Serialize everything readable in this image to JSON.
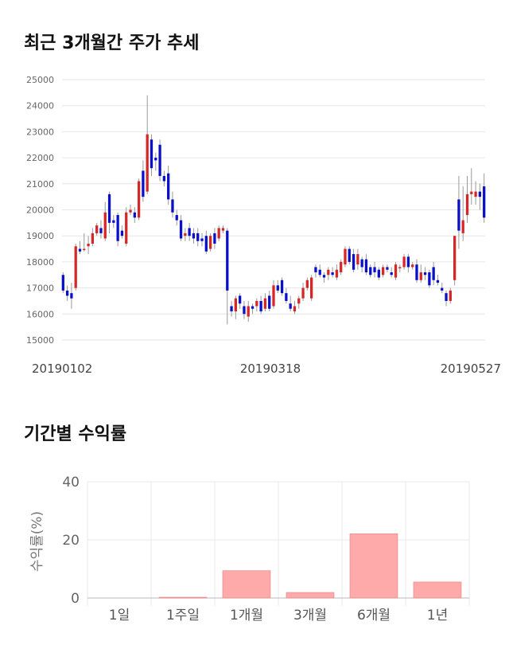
{
  "titles": {
    "price_chart": "최근 3개월간 주가 추세",
    "returns_chart": "기간별 수익률"
  },
  "chart_data": [
    {
      "type": "candlestick",
      "ylim": [
        15000,
        25000
      ],
      "y_ticks": [
        "25000",
        "24000",
        "23000",
        "22000",
        "21000",
        "20000",
        "19000",
        "18000",
        "17000",
        "16000",
        "15000"
      ],
      "x_labels": [
        "20190102",
        "20190318",
        "20190527"
      ],
      "grid": true,
      "colors": {
        "up": "#d62728",
        "down": "#0a10c8",
        "wick": "#999999",
        "grid": "#e6e6e6"
      },
      "candles": [
        [
          17500,
          16900,
          17600,
          16800
        ],
        [
          16900,
          16700,
          17100,
          16500
        ],
        [
          16800,
          16600,
          17200,
          16200
        ],
        [
          17000,
          18600,
          18700,
          16900
        ],
        [
          18500,
          18400,
          18800,
          18300
        ],
        [
          18500,
          18500,
          19100,
          18400
        ],
        [
          18600,
          18700,
          19000,
          18300
        ],
        [
          18700,
          19100,
          19300,
          18600
        ],
        [
          19100,
          19400,
          19500,
          19000
        ],
        [
          19300,
          19100,
          19600,
          18900
        ],
        [
          18900,
          19900,
          20300,
          18800
        ],
        [
          20600,
          19500,
          20700,
          19100
        ],
        [
          19600,
          19500,
          19800,
          19300
        ],
        [
          19800,
          18800,
          19900,
          18600
        ],
        [
          19200,
          19000,
          19400,
          18900
        ],
        [
          18700,
          19900,
          20100,
          18600
        ],
        [
          19900,
          20000,
          20200,
          19800
        ],
        [
          19900,
          19700,
          20100,
          19500
        ],
        [
          19700,
          21100,
          21200,
          19600
        ],
        [
          21500,
          20500,
          21900,
          20300
        ],
        [
          20700,
          22900,
          24400,
          20600
        ],
        [
          22700,
          21600,
          22900,
          21300
        ],
        [
          22000,
          21900,
          22200,
          21500
        ],
        [
          22500,
          21300,
          22700,
          21100
        ],
        [
          21300,
          21100,
          21500,
          20900
        ],
        [
          21400,
          20400,
          21700,
          20200
        ],
        [
          20400,
          19900,
          20700,
          19700
        ],
        [
          19800,
          19600,
          20000,
          19400
        ],
        [
          19600,
          18900,
          19800,
          18800
        ],
        [
          19000,
          19100,
          19300,
          18800
        ],
        [
          19300,
          19000,
          19500,
          18800
        ],
        [
          19100,
          18900,
          19300,
          18700
        ],
        [
          19100,
          18800,
          19300,
          18600
        ],
        [
          18900,
          18800,
          19100,
          18600
        ],
        [
          19000,
          18400,
          19200,
          18300
        ],
        [
          18500,
          19000,
          19100,
          18400
        ],
        [
          19100,
          18700,
          19300,
          18500
        ],
        [
          18900,
          19300,
          19400,
          18800
        ],
        [
          19200,
          19300,
          19400,
          19100
        ],
        [
          19200,
          16900,
          19300,
          15600
        ],
        [
          16300,
          16100,
          16500,
          15900
        ],
        [
          16100,
          16600,
          16700,
          15800
        ],
        [
          16700,
          16400,
          16800,
          16200
        ],
        [
          16300,
          16000,
          16500,
          15800
        ],
        [
          15900,
          16300,
          16500,
          15700
        ],
        [
          16300,
          16200,
          16400,
          16000
        ],
        [
          16300,
          16500,
          16600,
          16100
        ],
        [
          16500,
          16100,
          16700,
          16000
        ],
        [
          16200,
          16600,
          16800,
          16100
        ],
        [
          16700,
          16200,
          16900,
          16100
        ],
        [
          16300,
          17100,
          17300,
          16200
        ],
        [
          17100,
          16900,
          17300,
          16800
        ],
        [
          17300,
          16800,
          17400,
          16700
        ],
        [
          16800,
          16500,
          17000,
          16400
        ],
        [
          16400,
          16200,
          16700,
          16100
        ],
        [
          16100,
          16300,
          16500,
          16000
        ],
        [
          16400,
          16600,
          16700,
          16200
        ],
        [
          16600,
          17000,
          17200,
          16500
        ],
        [
          17000,
          17300,
          17400,
          16900
        ],
        [
          16600,
          17400,
          17500,
          16500
        ],
        [
          17800,
          17600,
          17900,
          17400
        ],
        [
          17700,
          17500,
          17900,
          17400
        ],
        [
          17500,
          17400,
          17600,
          17200
        ],
        [
          17500,
          17700,
          17800,
          17300
        ],
        [
          17600,
          17500,
          17800,
          17400
        ],
        [
          17400,
          17700,
          17900,
          17300
        ],
        [
          17600,
          18000,
          18100,
          17500
        ],
        [
          17900,
          18500,
          18600,
          17800
        ],
        [
          18500,
          18000,
          18600,
          17900
        ],
        [
          18300,
          17700,
          18500,
          17600
        ],
        [
          17900,
          18300,
          18500,
          17700
        ],
        [
          18100,
          17800,
          18200,
          17600
        ],
        [
          18100,
          17600,
          18300,
          17500
        ],
        [
          17800,
          17500,
          17900,
          17400
        ],
        [
          17800,
          17600,
          18000,
          17400
        ],
        [
          17700,
          17400,
          17800,
          17300
        ],
        [
          17500,
          17800,
          17900,
          17400
        ],
        [
          17800,
          17700,
          17900,
          17600
        ],
        [
          17600,
          17500,
          17800,
          17400
        ],
        [
          17400,
          17900,
          18000,
          17300
        ],
        [
          17800,
          17800,
          17900,
          17600
        ],
        [
          17800,
          18200,
          18300,
          17700
        ],
        [
          18200,
          17800,
          18300,
          17600
        ],
        [
          17800,
          17900,
          18000,
          17700
        ],
        [
          17900,
          17300,
          18100,
          17200
        ],
        [
          17300,
          17600,
          17900,
          17200
        ],
        [
          17600,
          17500,
          17800,
          17300
        ],
        [
          17600,
          17100,
          17700,
          17000
        ],
        [
          17800,
          17300,
          18000,
          17100
        ],
        [
          17300,
          17200,
          17500,
          17100
        ],
        [
          17000,
          16900,
          17200,
          16800
        ],
        [
          16800,
          16500,
          16900,
          16300
        ],
        [
          16500,
          16900,
          17000,
          16400
        ],
        [
          17300,
          19000,
          19000,
          17100
        ],
        [
          20400,
          19200,
          21300,
          18500
        ],
        [
          19100,
          19600,
          20900,
          18800
        ],
        [
          19800,
          20600,
          21300,
          19500
        ],
        [
          20600,
          20700,
          21600,
          20200
        ],
        [
          20500,
          20700,
          21100,
          20200
        ],
        [
          20700,
          20500,
          21000,
          20000
        ],
        [
          20900,
          19700,
          21400,
          19500
        ]
      ]
    },
    {
      "type": "bar",
      "categories": [
        "1일",
        "1주일",
        "1개월",
        "3개월",
        "6개월",
        "1년"
      ],
      "values": [
        0,
        0.1,
        9.4,
        1.9,
        22.1,
        5.5
      ],
      "ylabel": "수익률(%)",
      "ylim": [
        0,
        40
      ],
      "y_ticks": [
        "40",
        "20",
        "0"
      ],
      "grid": true,
      "bar_color": "#ffaaaa",
      "bar_edge_color": "#e08080"
    }
  ]
}
